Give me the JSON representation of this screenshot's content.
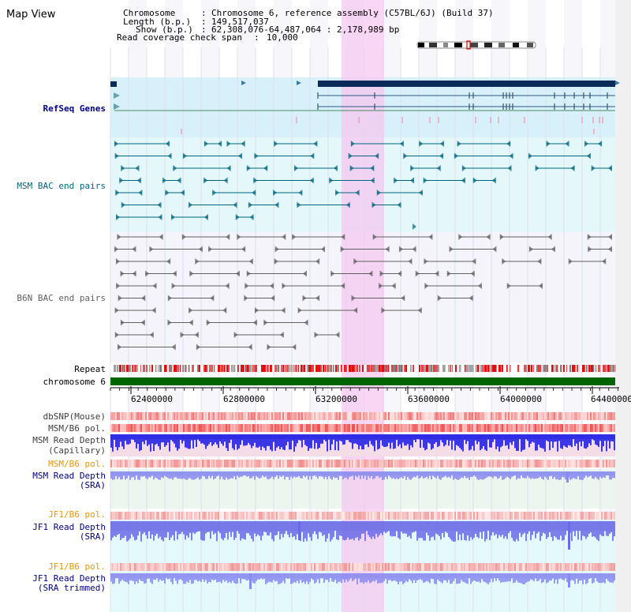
{
  "view_title": "Map View",
  "info": {
    "chromosome_label": "Chromosome",
    "chromosome_value": "Chromosome 6, reference assembly (C57BL/6J) (Build 37)",
    "length_label": "Length (b.p.)",
    "length_value": "149,517,037",
    "show_label": "Show (b.p.)",
    "show_value": "62,308,076-64,487,064 : 2,178,989 bp",
    "coverage_label": "Read coverage check span",
    "coverage_value": "10,000"
  },
  "tracks": {
    "refseq": "RefSeq Genes",
    "msm_bac": "MSM BAC end pairs",
    "b6n_bac": "B6N BAC end pairs",
    "repeat": "Repeat",
    "chromosome": "chromosome 6",
    "dbsnp": "dbSNP(Mouse)",
    "msm_b6_pol_1": "MSM/B6 pol.",
    "msm_read_depth_cap_1": "MSM Read Depth",
    "msm_read_depth_cap_2": "(Capillary)",
    "msm_b6_pol_2": "MSM/B6 pol.",
    "msm_read_depth_sra_1": "MSM Read Depth",
    "msm_read_depth_sra_2": "(SRA)",
    "jf1_b6_pol_1": "JF1/B6 pol.",
    "jf1_read_depth_sra_1": "JF1 Read Depth",
    "jf1_read_depth_sra_2": "(SRA)",
    "jf1_b6_pol_2": "JF1/B6 pol.",
    "jf1_read_depth_trim_1": "JF1 Read Depth",
    "jf1_read_depth_trim_2": "(SRA trimmed)"
  },
  "axis": {
    "ticks": [
      "62400000",
      "62800000",
      "63200000",
      "63600000",
      "64000000",
      "64400000"
    ]
  },
  "colors": {
    "navy": "#000080",
    "teal": "#006680",
    "gray": "#606060",
    "orange": "#e69900",
    "chromosome_green": "#006400",
    "highlight_pink": "#f5c8f0",
    "refseq_bg": "#d8f0fa",
    "msm_bg": "#e4f8fa",
    "b6n_bg": "#f4f4fa",
    "read_depth_blue": "#1a1ae6"
  }
}
